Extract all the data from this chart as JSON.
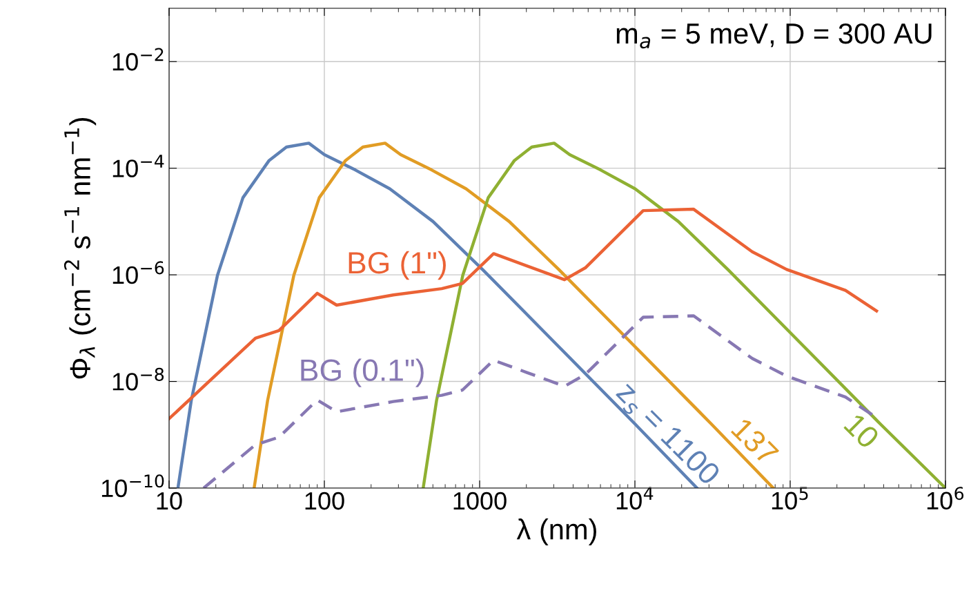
{
  "chart_data": {
    "type": "line",
    "xlabel": "λ (nm)",
    "ylabel": "Φ$_{λ}$ (cm$^{−2}$ s$^{−1}$ nm$^{−1}$)",
    "log": "xy",
    "grid": true,
    "legend": false,
    "marker": "none",
    "xlim": [
      10,
      1000000
    ],
    "ylim": [
      1e-10,
      0.1
    ],
    "xticks": [
      10,
      100,
      1000,
      {
        "value": 10000,
        "label": "10$^{4}$"
      },
      {
        "value": 100000,
        "label": "10$^{5}$"
      },
      {
        "value": 1000000,
        "label": "10$^{6}$"
      }
    ],
    "yticks": [
      {
        "value": 1e-10,
        "label": "10$^{−10}$"
      },
      {
        "value": 1e-08,
        "label": "10$^{−8}$"
      },
      {
        "value": 1e-06,
        "label": "10$^{−6}$"
      },
      {
        "value": 0.0001,
        "label": "10$^{−4}$"
      },
      {
        "value": 0.01,
        "label": "10$^{−2}$"
      }
    ],
    "annotations": [
      "m$_{a}$ = 5 meV, D = 300 AU"
    ],
    "series": [
      {
        "name": "z$_{s}$ = 1100",
        "color": "#5e81b5",
        "line_style": "solid",
        "x": [
          11.4,
          13.9,
          20.5,
          29.9,
          44.1,
          57,
          79.4,
          100,
          158,
          264,
          501,
          1052,
          3162,
          10000,
          25100
        ],
        "values": [
          1e-10,
          4.4e-09,
          9.8e-07,
          2.8e-05,
          0.00014,
          0.00025,
          0.000295,
          0.00018,
          9.3e-05,
          4.1e-05,
          1e-05,
          1.23e-06,
          4.8e-08,
          1.6e-09,
          1e-10
        ]
      },
      {
        "name": "137",
        "color": "#e19c24",
        "line_style": "solid",
        "x": [
          35.3,
          43.1,
          63.6,
          92.7,
          137,
          177,
          246,
          310,
          490,
          818,
          1550,
          3260,
          9800,
          31000,
          77800
        ],
        "values": [
          1e-10,
          4.4e-09,
          9.8e-07,
          2.8e-05,
          0.00014,
          0.00025,
          0.000295,
          0.00018,
          9.3e-05,
          4.1e-05,
          1e-05,
          1.23e-06,
          4.8e-08,
          1.6e-09,
          1e-10
        ]
      },
      {
        "name": "10",
        "color": "#8fb032",
        "line_style": "solid",
        "x": [
          433,
          528,
          779,
          1136,
          1676,
          2166,
          3017,
          3800,
          6004,
          10030,
          19040,
          39980,
          120200,
          380000,
          1000000
        ],
        "values": [
          1e-10,
          4.4e-09,
          9.8e-07,
          2.8e-05,
          0.00014,
          0.00025,
          0.000295,
          0.00018,
          9.3e-05,
          4.1e-05,
          1e-05,
          1.23e-06,
          4.8e-08,
          1.6e-09,
          1e-10
        ]
      },
      {
        "name": "BG (1\")",
        "color": "#eb6235",
        "line_style": "solid",
        "x": [
          10,
          36,
          51,
          90,
          120,
          278,
          570,
          775,
          1230,
          3520,
          4790,
          11300,
          23900,
          57000,
          95000,
          227000,
          360000
        ],
        "values": [
          2e-09,
          6.5e-08,
          9e-08,
          4.5e-07,
          2.7e-07,
          4.2e-07,
          5.5e-07,
          6.9e-07,
          2.5e-06,
          8.1e-07,
          1.35e-06,
          1.6e-05,
          1.7e-05,
          2.7e-06,
          1.26e-06,
          5.1e-07,
          2.1e-07
        ]
      },
      {
        "name": "BG (0.1\")",
        "color": "#8778b3",
        "line_style": "dashed",
        "x": [
          16.7,
          36,
          51,
          90,
          120,
          278,
          570,
          775,
          1230,
          3520,
          4790,
          11300,
          23900,
          57000,
          95000,
          227000,
          360000
        ],
        "values": [
          1e-10,
          6.5e-10,
          9e-10,
          4.5e-09,
          2.7e-09,
          4.2e-09,
          5.5e-09,
          6.9e-09,
          2.5e-08,
          8.1e-09,
          1.35e-08,
          1.6e-07,
          1.7e-07,
          2.7e-08,
          1.26e-08,
          5.1e-09,
          2.1e-09
        ]
      }
    ]
  }
}
